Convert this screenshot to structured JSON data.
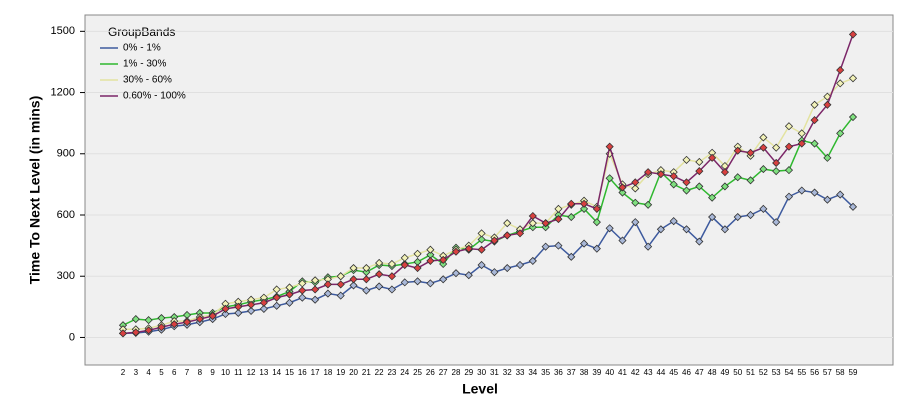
{
  "chart_data": {
    "type": "line",
    "x_label": "Level",
    "y_label": "Time To Next Level (in mins)",
    "legend_title": "GroupBands",
    "legend": "upper left",
    "grid": true,
    "categories": [
      2,
      3,
      4,
      5,
      6,
      7,
      8,
      9,
      10,
      11,
      12,
      13,
      14,
      15,
      16,
      17,
      18,
      19,
      20,
      21,
      22,
      23,
      24,
      25,
      26,
      27,
      28,
      29,
      30,
      31,
      32,
      33,
      34,
      35,
      36,
      37,
      38,
      39,
      40,
      41,
      42,
      43,
      44,
      45,
      46,
      47,
      48,
      49,
      50,
      51,
      52,
      53,
      54,
      55,
      56,
      57,
      58,
      59
    ],
    "ylim": [
      -135,
      1580
    ],
    "yticks": [
      0,
      300,
      600,
      900,
      1200,
      1500
    ],
    "series": [
      {
        "name": "0% - 1%",
        "color": "#3d5a9e",
        "marker_fill": "#a9b8d8",
        "values": [
          20,
          22,
          28,
          38,
          55,
          62,
          75,
          90,
          115,
          120,
          130,
          140,
          155,
          170,
          195,
          185,
          215,
          205,
          255,
          230,
          250,
          235,
          270,
          275,
          265,
          285,
          315,
          305,
          355,
          320,
          340,
          355,
          375,
          445,
          450,
          395,
          460,
          435,
          535,
          475,
          565,
          445,
          530,
          570,
          530,
          470,
          590,
          530,
          590,
          600,
          630,
          565,
          690,
          720,
          710,
          675,
          700,
          640
        ]
      },
      {
        "name": "1% - 30%",
        "color": "#2fb82f",
        "marker_fill": "#7fe07f",
        "values": [
          60,
          90,
          85,
          95,
          100,
          110,
          120,
          120,
          150,
          160,
          175,
          185,
          200,
          225,
          275,
          270,
          295,
          300,
          330,
          320,
          355,
          350,
          360,
          370,
          405,
          360,
          440,
          430,
          480,
          470,
          500,
          520,
          540,
          540,
          600,
          590,
          630,
          565,
          780,
          710,
          660,
          650,
          810,
          750,
          720,
          740,
          685,
          740,
          785,
          770,
          825,
          815,
          820,
          965,
          950,
          880,
          1000,
          1080
        ]
      },
      {
        "name": "30% - 60%",
        "color": "#e3e3a0",
        "marker_fill": "#f2f2b8",
        "values": [
          40,
          40,
          45,
          60,
          80,
          80,
          100,
          110,
          165,
          175,
          185,
          195,
          235,
          245,
          265,
          280,
          285,
          300,
          340,
          340,
          365,
          360,
          390,
          410,
          430,
          400,
          430,
          450,
          510,
          490,
          560,
          530,
          560,
          560,
          630,
          650,
          670,
          640,
          900,
          750,
          730,
          800,
          820,
          810,
          870,
          860,
          905,
          840,
          935,
          890,
          980,
          930,
          1035,
          1000,
          1140,
          1180,
          1245,
          1270
        ]
      },
      {
        "name": "0.60% - 100%",
        "color": "#7b2668",
        "marker_fill": "#d84040",
        "values": [
          20,
          25,
          35,
          50,
          65,
          75,
          90,
          105,
          140,
          150,
          160,
          170,
          195,
          210,
          230,
          235,
          260,
          260,
          285,
          285,
          310,
          300,
          355,
          340,
          375,
          380,
          420,
          435,
          430,
          475,
          500,
          510,
          595,
          560,
          580,
          655,
          655,
          630,
          935,
          735,
          760,
          810,
          800,
          790,
          760,
          815,
          880,
          810,
          915,
          905,
          930,
          855,
          935,
          950,
          1065,
          1140,
          1310,
          1485
        ]
      }
    ]
  }
}
